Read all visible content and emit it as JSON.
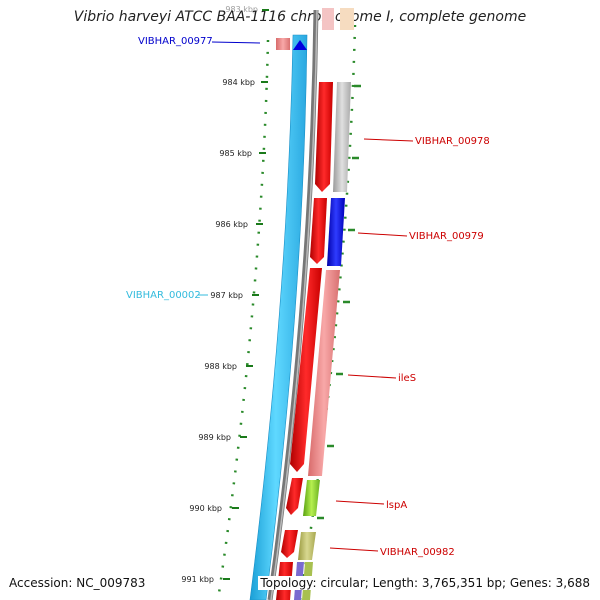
{
  "title": "Vibrio harveyi ATCC BAA-1116 chromosome I, complete genome",
  "ticks": [
    "983 kbp",
    "984 kbp",
    "985 kbp",
    "986 kbp",
    "987 kbp",
    "988 kbp",
    "989 kbp",
    "990 kbp",
    "991 kbp"
  ],
  "genes": [
    {
      "label": "VIBHAR_00977",
      "color": "#0000cc"
    },
    {
      "label": "VIBHAR_00978",
      "color": "#cc0000"
    },
    {
      "label": "VIBHAR_00979",
      "color": "#cc0000"
    },
    {
      "label": "VIBHAR_00002",
      "color": "#33bbdd"
    },
    {
      "label": "ileS",
      "color": "#cc0000"
    },
    {
      "label": "lspA",
      "color": "#cc0000"
    },
    {
      "label": "VIBHAR_00982",
      "color": "#cc0000"
    }
  ],
  "accession": "Accession: NC_009783",
  "topology": "Topology: circular; Length: 3,765,351 bp; Genes: 3,688"
}
